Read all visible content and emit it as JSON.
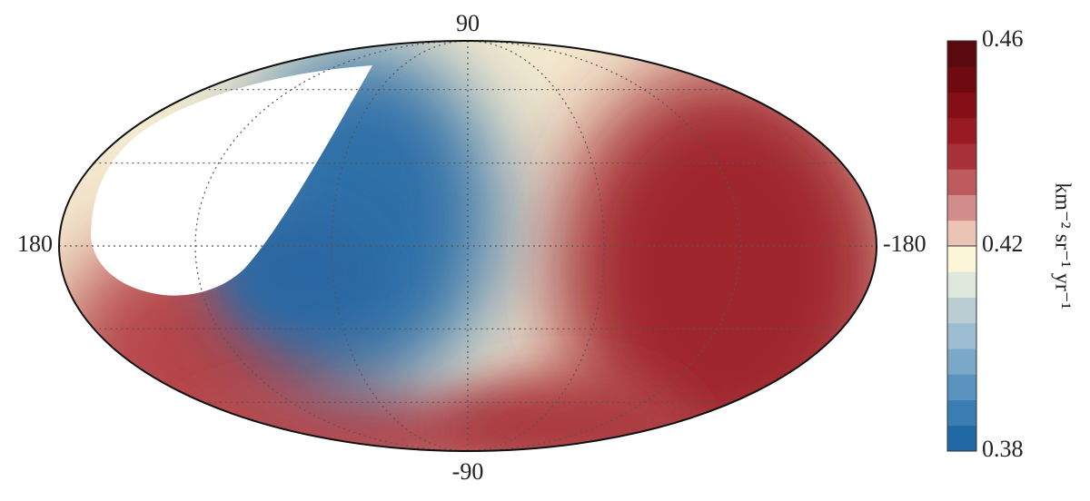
{
  "map": {
    "labels": {
      "top": "90",
      "bottom": "-90",
      "left": "180",
      "right": "-180"
    }
  },
  "colorbar": {
    "label": "km⁻² sr⁻¹ yr⁻¹",
    "lim": [
      0.38,
      0.46
    ],
    "ticks": [
      0.38,
      0.42,
      0.46
    ],
    "colors": [
      "#1f68a4",
      "#3a7db3",
      "#5a93bd",
      "#7aa8c8",
      "#9cbcd2",
      "#b9cdd3",
      "#dfe8dc",
      "#fbf6d8",
      "#ecc4b4",
      "#d38c8c",
      "#bf5a5e",
      "#a8323a",
      "#9a1a22",
      "#850f16",
      "#6e0a10",
      "#5a0a0e"
    ]
  }
}
